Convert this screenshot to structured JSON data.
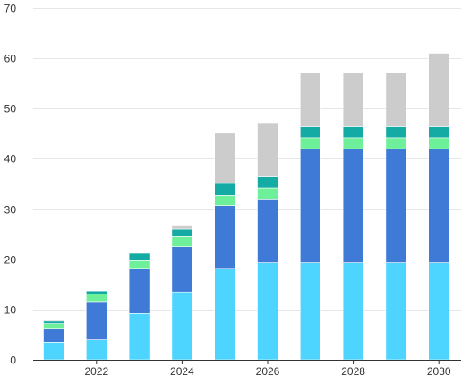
{
  "chart_data": {
    "type": "bar",
    "stacked": true,
    "categories": [
      "2021",
      "2022",
      "2023",
      "2024",
      "2025",
      "2026",
      "2027",
      "2028",
      "2029",
      "2030"
    ],
    "x_tick_labels": [
      "2022",
      "2024",
      "2026",
      "2028",
      "2030"
    ],
    "series": [
      {
        "values": [
          3.5,
          4.0,
          9.2,
          13.5,
          18.2,
          19.3,
          19.3,
          19.3,
          19.3,
          19.3
        ],
        "color": "#4dd4ff"
      },
      {
        "values": [
          2.8,
          7.6,
          9.0,
          9.0,
          12.5,
          12.7,
          22.7,
          22.7,
          22.7,
          22.7
        ],
        "color": "#3e7ad6"
      },
      {
        "values": [
          0.9,
          1.5,
          1.5,
          2.0,
          2.0,
          2.2,
          2.2,
          2.2,
          2.2,
          2.2
        ],
        "color": "#6ef09a"
      },
      {
        "values": [
          0.5,
          0.6,
          1.5,
          1.5,
          2.4,
          2.2,
          2.2,
          2.2,
          2.2,
          2.2
        ],
        "color": "#13aba3"
      },
      {
        "values": [
          0.3,
          0,
          0,
          0.8,
          10.0,
          10.8,
          10.8,
          10.8,
          10.8,
          14.6
        ],
        "color": "#cccccc"
      }
    ],
    "ylim": [
      0,
      70
    ],
    "yticks": [
      0,
      10,
      20,
      30,
      40,
      50,
      60,
      70
    ],
    "grid": true,
    "legend": "none"
  }
}
